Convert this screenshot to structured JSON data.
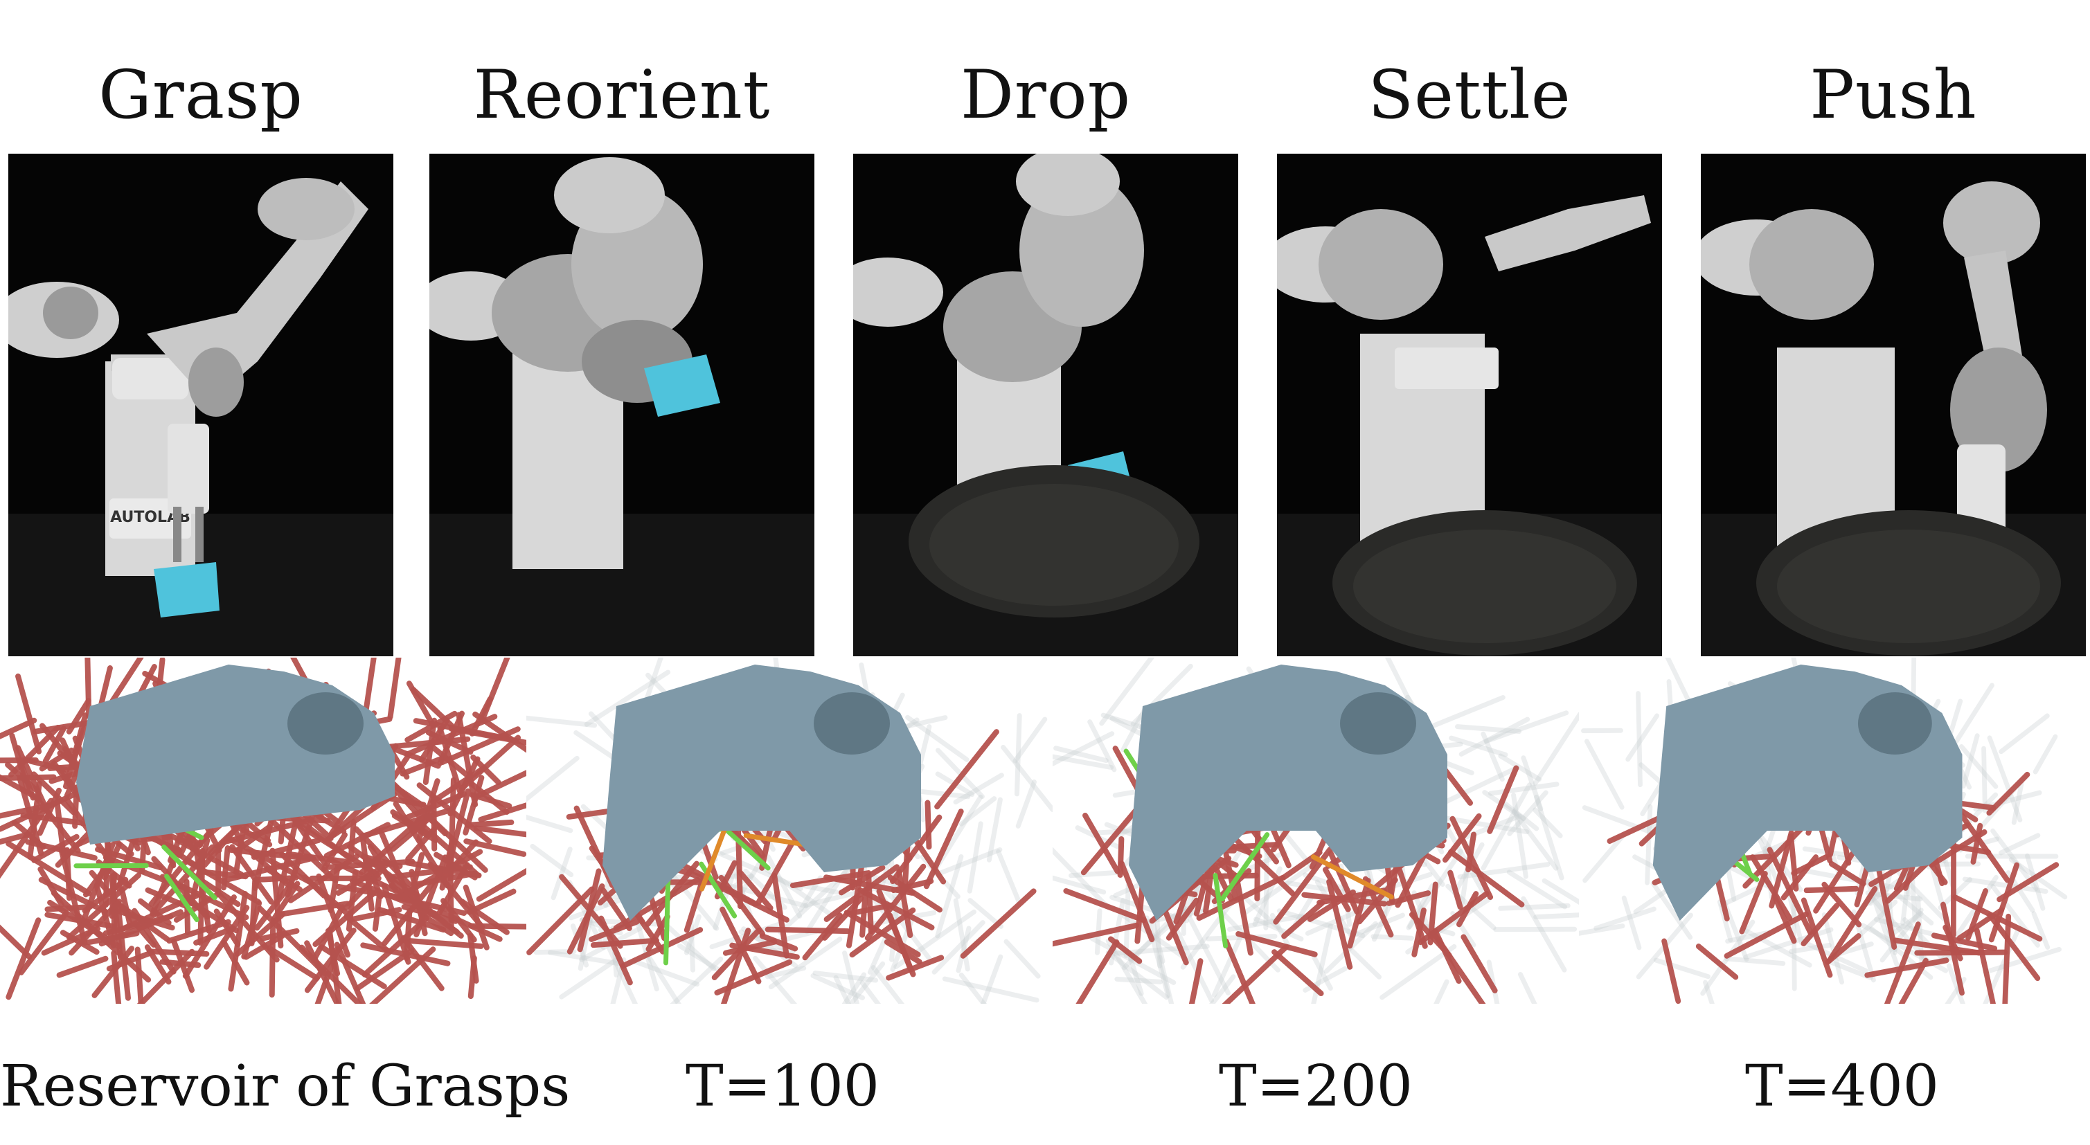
{
  "phases": [
    {
      "title": "Grasp"
    },
    {
      "title": "Reorient"
    },
    {
      "title": "Drop"
    },
    {
      "title": "Settle"
    },
    {
      "title": "Push"
    }
  ],
  "robot_label": "AUTOLAB",
  "captions": [
    {
      "text": "Reservoir of Grasps"
    },
    {
      "text": "T=100"
    },
    {
      "text": "T=200"
    },
    {
      "text": "T=400"
    }
  ],
  "colors": {
    "object_blue": "#4fc3dc",
    "mesh_gray_blue": "#7f99a8",
    "grasp_red": "#b5524e",
    "grasp_green": "#6ed04a",
    "grasp_orange": "#e08a2a",
    "pan": "#2a2a28"
  }
}
